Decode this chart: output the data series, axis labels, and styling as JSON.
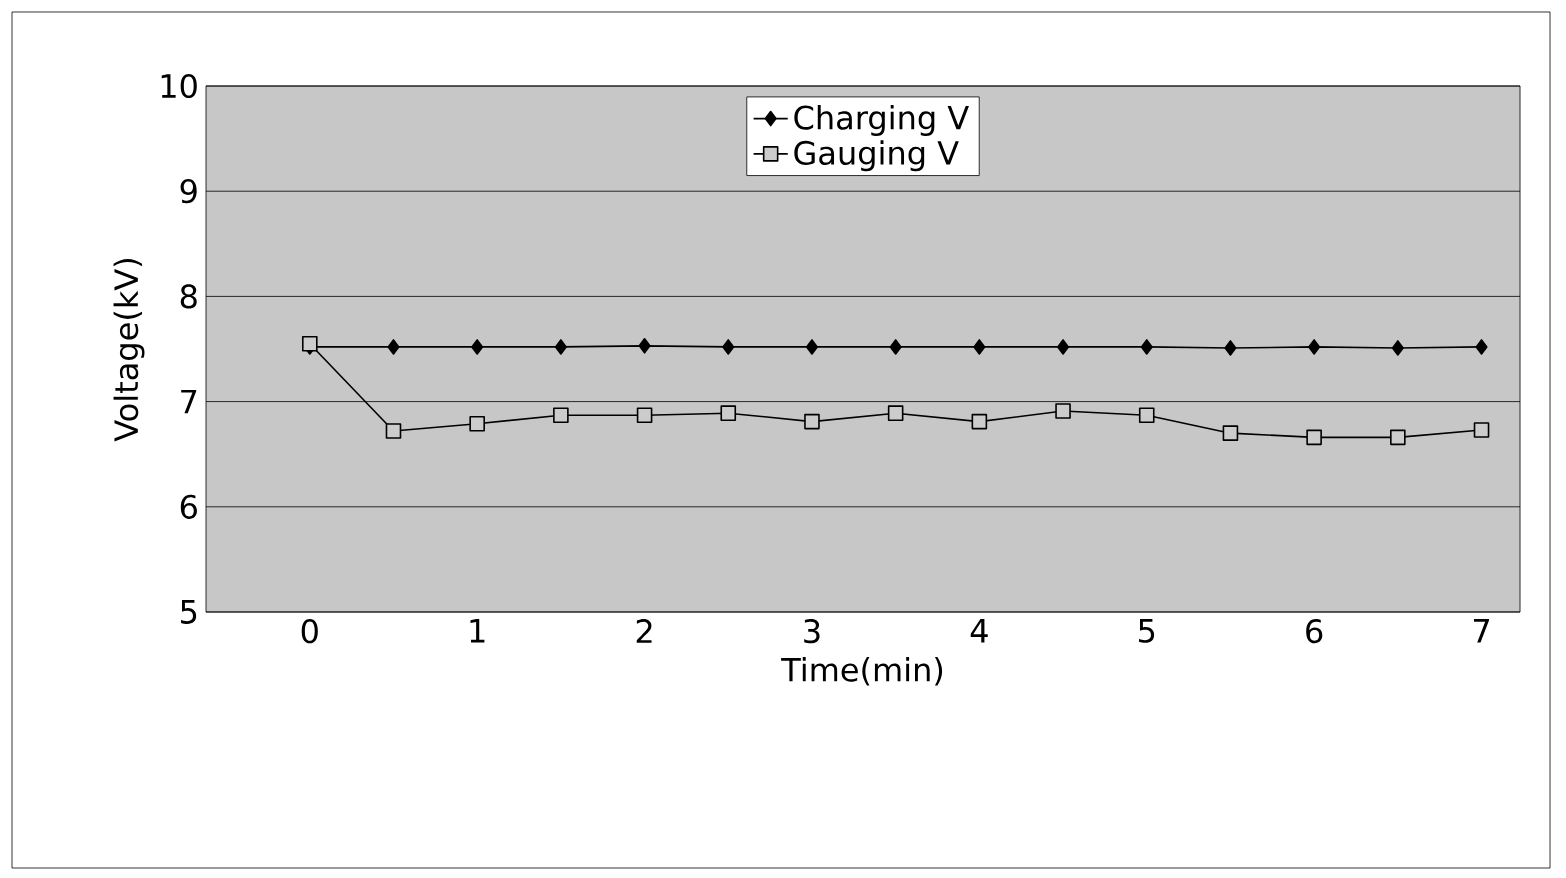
{
  "chart_data": {
    "type": "line",
    "xlabel": "Time(min)",
    "ylabel": "Voltage(kV)",
    "x": [
      0,
      0.5,
      1,
      1.5,
      2,
      2.5,
      3,
      3.5,
      4,
      4.5,
      5,
      5.5,
      6,
      6.5,
      7
    ],
    "series": [
      {
        "name": "Charging V",
        "color": "#000000",
        "marker": "diamond",
        "values": [
          7.52,
          7.52,
          7.52,
          7.52,
          7.53,
          7.52,
          7.52,
          7.52,
          7.52,
          7.52,
          7.52,
          7.51,
          7.52,
          7.51,
          7.52
        ]
      },
      {
        "name": "Gauging V",
        "color": "#000000",
        "marker": "square",
        "values": [
          7.55,
          6.72,
          6.79,
          6.87,
          6.87,
          6.89,
          6.81,
          6.89,
          6.81,
          6.91,
          6.87,
          6.7,
          6.66,
          6.66,
          6.73
        ]
      }
    ],
    "xlim": [
      -0.62,
      7.23
    ],
    "ylim": [
      5,
      10
    ],
    "xticks": [
      0,
      1,
      2,
      3,
      4,
      5,
      6,
      7
    ],
    "yticks": [
      5,
      6,
      7,
      8,
      9,
      10
    ],
    "grid": "y",
    "legend": "top",
    "line_style": "solid"
  }
}
